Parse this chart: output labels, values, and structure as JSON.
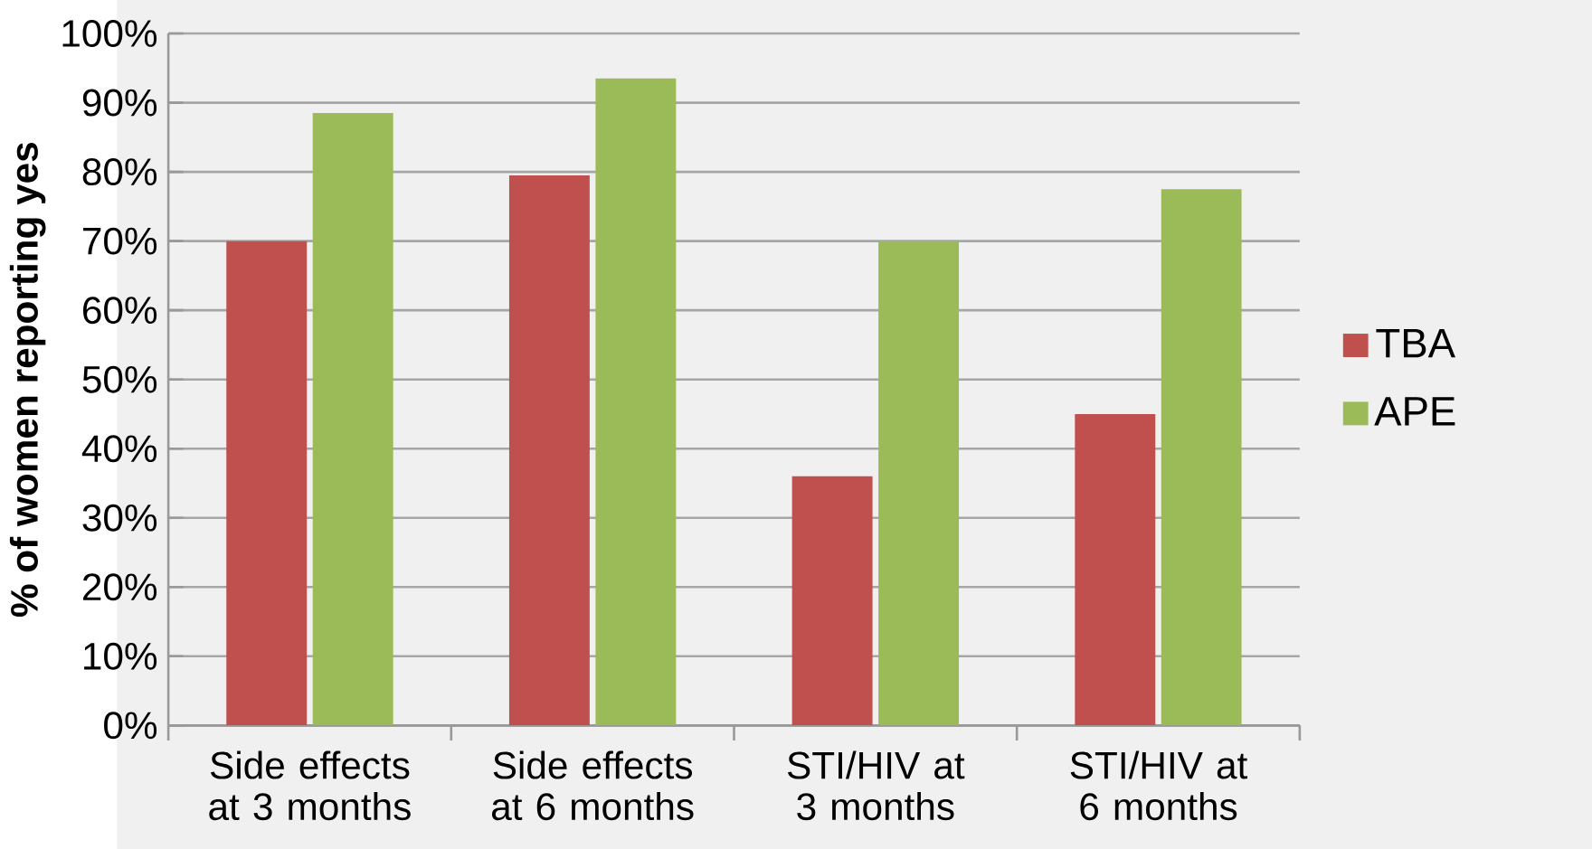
{
  "chart_data": {
    "type": "bar",
    "ylabel": "% of women reporting yes",
    "categories": [
      "Side effects at 3 months",
      "Side effects at 6 months",
      "STI/HIV at 3 months",
      "STI/HIV at 6 months"
    ],
    "series": [
      {
        "name": "TBA",
        "color": "#c0504d",
        "values": [
          70,
          79.5,
          36,
          45
        ]
      },
      {
        "name": "APE",
        "color": "#9bbb59",
        "values": [
          88.5,
          93.5,
          70,
          77.5
        ]
      }
    ],
    "ylim": [
      0,
      100
    ],
    "yticks": [
      {
        "value": 0,
        "label": "0%"
      },
      {
        "value": 10,
        "label": "10%"
      },
      {
        "value": 20,
        "label": "20%"
      },
      {
        "value": 30,
        "label": "30%"
      },
      {
        "value": 40,
        "label": "40%"
      },
      {
        "value": 50,
        "label": "50%"
      },
      {
        "value": 60,
        "label": "60%"
      },
      {
        "value": 70,
        "label": "70%"
      },
      {
        "value": 80,
        "label": "80%"
      },
      {
        "value": 90,
        "label": "90%"
      },
      {
        "value": 100,
        "label": "100%"
      }
    ],
    "grid": "y",
    "legend": "right"
  }
}
